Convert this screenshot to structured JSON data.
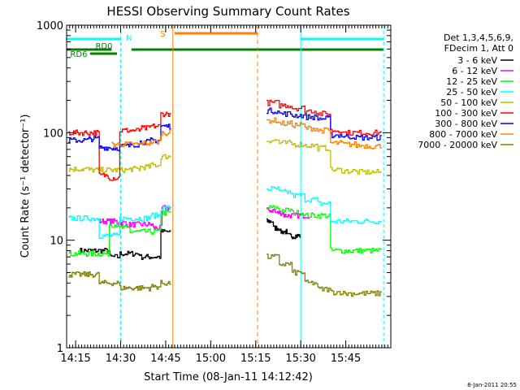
{
  "chart_data": {
    "type": "line",
    "title": "HESSI Observing Summary Count Rates",
    "xlabel": "Start Time (08-Jan-11 14:12:42)",
    "ylabel": "Count Rate (s⁻¹ detector⁻¹)",
    "yscale": "log",
    "ylim": [
      1,
      1000
    ],
    "xlim_minutes": [
      14.2,
      16.0
    ],
    "y_ticks": [
      "1",
      "10",
      "100",
      "1000"
    ],
    "x_ticks": [
      {
        "t": 14.25,
        "label": "14:15"
      },
      {
        "t": 14.5,
        "label": "14:30"
      },
      {
        "t": 14.75,
        "label": "14:45"
      },
      {
        "t": 15.0,
        "label": "15:00"
      },
      {
        "t": 15.25,
        "label": "15:15"
      },
      {
        "t": 15.5,
        "label": "15:30"
      },
      {
        "t": 15.75,
        "label": "15:45"
      }
    ],
    "footer_date": "8-Jan-2011 20:55",
    "legend": {
      "header": [
        "Det 1,3,4,5,6,9,",
        "FDecim 1, Att 0"
      ],
      "placement": "right"
    },
    "flags": [
      {
        "label": "N",
        "color": "#00ffff"
      },
      {
        "label": "RD0",
        "color": "#008000"
      },
      {
        "label": "RD6",
        "color": "#008000"
      },
      {
        "label": "S",
        "color": "#ff8000"
      }
    ],
    "series": [
      {
        "name": "3 - 6 keV",
        "color": "#000000",
        "segments": [
          {
            "start": 14.27,
            "end": 14.78,
            "values": [
              8,
              8,
              8,
              7,
              7.5,
              7.5,
              7,
              7,
              12
            ]
          },
          {
            "start": 15.31,
            "end": 15.5,
            "values": [
              15,
              13,
              12,
              11,
              11
            ]
          }
        ]
      },
      {
        "name": "6 - 12 keV",
        "color": "#ff00ff",
        "segments": [
          {
            "start": 14.38,
            "end": 14.78,
            "values": [
              15,
              15,
              14.5,
              14,
              14,
              14,
              13,
              20
            ]
          },
          {
            "start": 15.31,
            "end": 15.55,
            "values": [
              19,
              18,
              17,
              17,
              17
            ]
          }
        ]
      },
      {
        "name": "12 - 25 keV",
        "color": "#00ff00",
        "segments": [
          {
            "start": 14.21,
            "end": 14.78,
            "values": [
              7.5,
              7.5,
              7.5,
              7.5,
              14,
              13,
              12,
              12,
              12,
              18
            ]
          },
          {
            "start": 15.31,
            "end": 15.95,
            "values": [
              20,
              19,
              18,
              17,
              17,
              8,
              8,
              8,
              8
            ]
          }
        ]
      },
      {
        "name": "25 - 50 keV",
        "color": "#00ffff",
        "segments": [
          {
            "start": 14.21,
            "end": 14.78,
            "values": [
              16,
              16,
              16,
              11,
              11,
              16,
              16,
              16,
              17,
              20
            ]
          },
          {
            "start": 15.31,
            "end": 15.95,
            "values": [
              30,
              28,
              26,
              24,
              22,
              15,
              15,
              15,
              15
            ]
          }
        ]
      },
      {
        "name": "50 - 100 keV",
        "color": "#c0c000",
        "segments": [
          {
            "start": 14.21,
            "end": 14.78,
            "values": [
              46,
              46,
              45,
              45,
              45,
              45,
              46,
              48,
              50,
              60
            ]
          },
          {
            "start": 15.31,
            "end": 15.95,
            "values": [
              85,
              80,
              78,
              76,
              72,
              45,
              44,
              43,
              43
            ]
          }
        ]
      },
      {
        "name": "100 - 300 keV",
        "color": "#ff0000",
        "segments": [
          {
            "start": 14.21,
            "end": 14.78,
            "values": [
              100,
              100,
              100,
              40,
              38,
              105,
              105,
              110,
              115,
              150
            ]
          },
          {
            "start": 15.31,
            "end": 15.95,
            "values": [
              190,
              180,
              170,
              160,
              150,
              105,
              100,
              100,
              100
            ]
          }
        ]
      },
      {
        "name": "300 - 800 keV",
        "color": "#0000ff",
        "segments": [
          {
            "start": 14.21,
            "end": 14.78,
            "values": [
              85,
              85,
              88,
              73,
              72,
              75,
              78,
              82,
              85,
              115
            ]
          },
          {
            "start": 15.31,
            "end": 15.95,
            "values": [
              160,
              150,
              145,
              140,
              135,
              95,
              92,
              90,
              90
            ]
          }
        ]
      },
      {
        "name": "800 - 7000 keV",
        "color": "#ff8000",
        "segments": [
          {
            "start": 14.45,
            "end": 14.78,
            "values": [
              78,
              78,
              78,
              80,
              82,
              100
            ]
          },
          {
            "start": 15.31,
            "end": 15.95,
            "values": [
              130,
              122,
              118,
              110,
              105,
              80,
              78,
              76,
              75
            ]
          }
        ]
      },
      {
        "name": "7000 - 20000 keV",
        "color": "#808000",
        "segments": [
          {
            "start": 14.21,
            "end": 14.78,
            "values": [
              4.8,
              4.8,
              4.8,
              4.0,
              4.0,
              3.6,
              3.6,
              3.6,
              3.7,
              4.0
            ]
          },
          {
            "start": 15.31,
            "end": 15.95,
            "values": [
              7,
              6,
              5,
              4,
              3.5,
              3.3,
              3.2,
              3.2,
              3.2
            ]
          }
        ]
      }
    ]
  }
}
